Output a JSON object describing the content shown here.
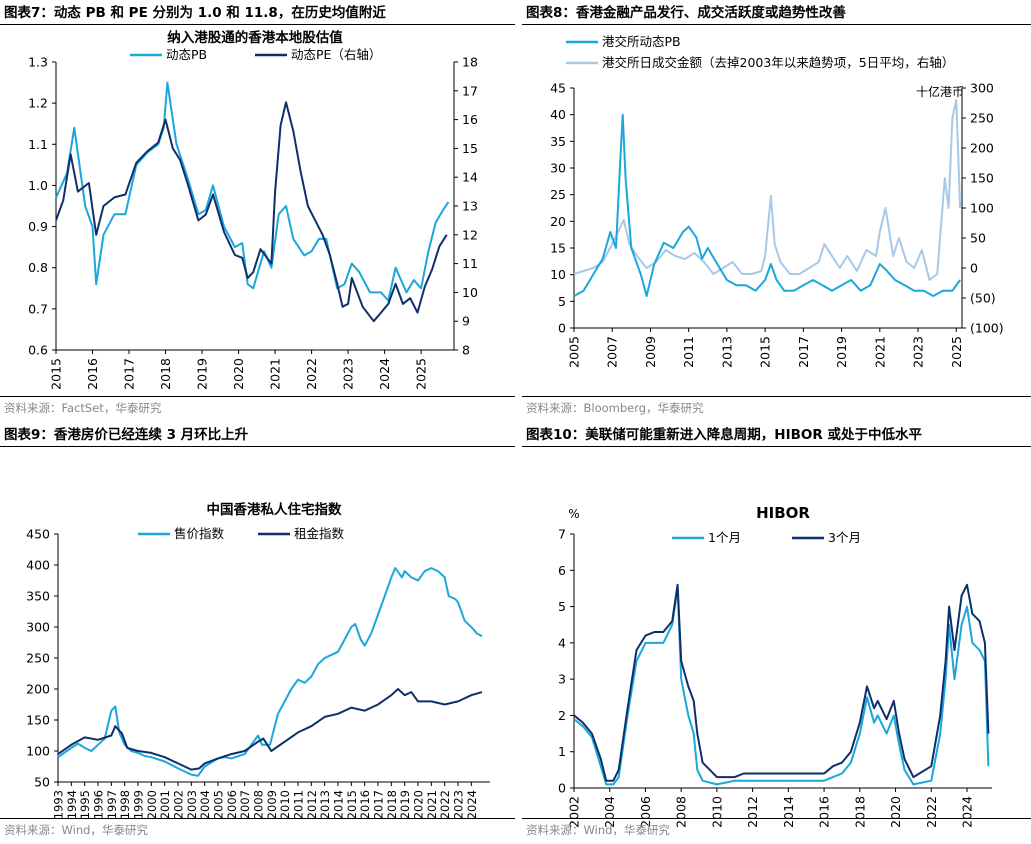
{
  "panels": [
    {
      "header": "图表7：动态 PB 和 PE 分别为 1.0 和 11.8，在历史均值附近",
      "source": "资料来源：FactSet，华泰研究"
    },
    {
      "header": "图表8：香港金融产品发行、成交活跃度或趋势性改善",
      "source": "资料来源：Bloomberg，华泰研究"
    },
    {
      "header": "图表9：香港房价已经连续 3 月环比上升",
      "source": "资料来源：Wind，华泰研究"
    },
    {
      "header": "图表10：美联储可能重新进入降息周期，HIBOR 或处于中低水平",
      "source": "资料来源：Wind，华泰研究"
    }
  ],
  "colors": {
    "light": "#1aa7dc",
    "dark": "#0e2f6b",
    "pale": "#a8c8e8"
  },
  "chart_data": [
    {
      "type": "line",
      "title": "纳入港股通的香港本地股估值",
      "x_ticks": [
        "2015",
        "2016",
        "2017",
        "2018",
        "2019",
        "2020",
        "2021",
        "2022",
        "2023",
        "2024",
        "2025"
      ],
      "xlim": [
        2015,
        2025.9
      ],
      "ylim": [
        0.6,
        1.3
      ],
      "y_ticks": [
        "0.6",
        "0.7",
        "0.8",
        "0.9",
        "1.0",
        "1.1",
        "1.2",
        "1.3"
      ],
      "y2lim": [
        8,
        18
      ],
      "y2_ticks": [
        "8",
        "9",
        "10",
        "11",
        "12",
        "13",
        "14",
        "15",
        "16",
        "17",
        "18"
      ],
      "series": [
        {
          "name": "动态PB",
          "axis": "left",
          "x": [
            2015,
            2015.3,
            2015.5,
            2015.8,
            2016,
            2016.1,
            2016.3,
            2016.6,
            2016.9,
            2017.2,
            2017.5,
            2017.8,
            2017.95,
            2018.05,
            2018.3,
            2018.6,
            2018.9,
            2019.1,
            2019.3,
            2019.6,
            2019.9,
            2020.1,
            2020.25,
            2020.4,
            2020.7,
            2020.9,
            2021.1,
            2021.3,
            2021.5,
            2021.8,
            2022.0,
            2022.2,
            2022.4,
            2022.7,
            2022.9,
            2023.1,
            2023.3,
            2023.6,
            2023.9,
            2024.1,
            2024.3,
            2024.6,
            2024.8,
            2025.0,
            2025.2,
            2025.4,
            2025.6,
            2025.75
          ],
          "y": [
            0.97,
            1.03,
            1.14,
            0.95,
            0.9,
            0.76,
            0.88,
            0.93,
            0.93,
            1.05,
            1.08,
            1.1,
            1.14,
            1.25,
            1.1,
            1.02,
            0.93,
            0.94,
            1.0,
            0.9,
            0.85,
            0.86,
            0.76,
            0.75,
            0.84,
            0.8,
            0.93,
            0.95,
            0.87,
            0.83,
            0.84,
            0.87,
            0.87,
            0.75,
            0.76,
            0.81,
            0.79,
            0.74,
            0.74,
            0.72,
            0.8,
            0.74,
            0.77,
            0.75,
            0.84,
            0.91,
            0.94,
            0.96
          ]
        },
        {
          "name": "动态PE（右轴）",
          "axis": "right",
          "x": [
            2015,
            2015.2,
            2015.4,
            2015.6,
            2015.9,
            2016.1,
            2016.3,
            2016.6,
            2016.9,
            2017.2,
            2017.5,
            2017.8,
            2018.0,
            2018.2,
            2018.4,
            2018.6,
            2018.9,
            2019.1,
            2019.3,
            2019.6,
            2019.9,
            2020.1,
            2020.25,
            2020.4,
            2020.6,
            2020.9,
            2021.0,
            2021.15,
            2021.3,
            2021.5,
            2021.7,
            2021.9,
            2022.1,
            2022.3,
            2022.5,
            2022.7,
            2022.85,
            2023.0,
            2023.1,
            2023.4,
            2023.7,
            2023.9,
            2024.1,
            2024.3,
            2024.5,
            2024.7,
            2024.9,
            2025.1,
            2025.3,
            2025.5,
            2025.7
          ],
          "y": [
            12.5,
            13.2,
            14.8,
            13.5,
            13.8,
            12.0,
            13.0,
            13.3,
            13.4,
            14.5,
            14.9,
            15.2,
            16.0,
            15.0,
            14.6,
            13.8,
            12.5,
            12.7,
            13.4,
            12.1,
            11.3,
            11.2,
            10.5,
            10.7,
            11.5,
            11.0,
            13.5,
            15.8,
            16.6,
            15.6,
            14.2,
            13.0,
            12.5,
            12.0,
            11.3,
            10.3,
            9.5,
            9.6,
            10.5,
            9.5,
            9.0,
            9.3,
            9.6,
            10.3,
            9.6,
            9.8,
            9.3,
            10.2,
            10.8,
            11.6,
            12.0
          ]
        }
      ]
    },
    {
      "type": "line",
      "title": "",
      "unit_label": "十亿港币",
      "x_ticks": [
        "2005",
        "2007",
        "2009",
        "2011",
        "2013",
        "2015",
        "2017",
        "2019",
        "2021",
        "2023",
        "2025"
      ],
      "xlim": [
        2005,
        2025.3
      ],
      "ylim": [
        0,
        45
      ],
      "y_ticks": [
        "0",
        "5",
        "10",
        "15",
        "20",
        "25",
        "30",
        "35",
        "40",
        "45"
      ],
      "y2lim": [
        -100,
        300
      ],
      "y2_ticks": [
        "(100)",
        "(50)",
        "0",
        "50",
        "100",
        "150",
        "200",
        "250",
        "300"
      ],
      "series": [
        {
          "name": "港交所动态PB",
          "axis": "left",
          "x": [
            2005,
            2005.5,
            2006,
            2006.5,
            2006.9,
            2007.2,
            2007.4,
            2007.55,
            2007.7,
            2008.0,
            2008.5,
            2008.8,
            2009.2,
            2009.7,
            2010.2,
            2010.7,
            2011.0,
            2011.4,
            2011.7,
            2012.0,
            2012.5,
            2013.0,
            2013.5,
            2014.0,
            2014.5,
            2015.0,
            2015.3,
            2015.6,
            2016.0,
            2016.5,
            2017.0,
            2017.5,
            2018.0,
            2018.5,
            2019.0,
            2019.5,
            2020.0,
            2020.5,
            2021.0,
            2021.3,
            2021.8,
            2022.3,
            2022.8,
            2023.3,
            2023.8,
            2024.3,
            2024.8,
            2025.2
          ],
          "y": [
            6,
            7,
            10,
            13,
            18,
            15,
            30,
            40,
            28,
            15,
            10,
            6,
            12,
            16,
            15,
            18,
            19,
            17,
            13,
            15,
            12,
            9,
            8,
            8,
            7,
            9,
            12,
            9,
            7,
            7,
            8,
            9,
            8,
            7,
            8,
            9,
            7,
            8,
            12,
            11,
            9,
            8,
            7,
            7,
            6,
            7,
            7,
            9
          ]
        },
        {
          "name": "港交所日成交金额（去掉2003年以来趋势项，5日平均，右轴）",
          "axis": "right",
          "x": [
            2005,
            2005.5,
            2006,
            2006.5,
            2007,
            2007.3,
            2007.6,
            2007.9,
            2008.3,
            2008.8,
            2009.3,
            2009.8,
            2010.3,
            2010.8,
            2011.3,
            2011.8,
            2012.3,
            2012.8,
            2013.3,
            2013.8,
            2014.3,
            2014.8,
            2015.0,
            2015.3,
            2015.5,
            2015.8,
            2016.3,
            2016.8,
            2017.3,
            2017.8,
            2018.1,
            2018.5,
            2018.9,
            2019.3,
            2019.8,
            2020.3,
            2020.8,
            2021.0,
            2021.3,
            2021.7,
            2022.0,
            2022.4,
            2022.8,
            2023.2,
            2023.6,
            2024.0,
            2024.4,
            2024.6,
            2024.8,
            2025.0,
            2025.2
          ],
          "y": [
            -10,
            -5,
            0,
            10,
            40,
            60,
            80,
            40,
            20,
            0,
            10,
            30,
            20,
            15,
            25,
            10,
            -10,
            0,
            10,
            -10,
            -10,
            -5,
            20,
            120,
            40,
            10,
            -10,
            -10,
            0,
            10,
            40,
            20,
            0,
            20,
            -5,
            30,
            20,
            60,
            100,
            20,
            50,
            10,
            0,
            30,
            -20,
            -10,
            150,
            100,
            250,
            280,
            100
          ]
        }
      ]
    },
    {
      "type": "line",
      "title": "中国香港私人住宅指数",
      "x_ticks": [
        "1993",
        "1994",
        "1995",
        "1996",
        "1997",
        "1998",
        "1999",
        "2000",
        "2001",
        "2002",
        "2003",
        "2004",
        "2005",
        "2006",
        "2007",
        "2008",
        "2009",
        "2010",
        "2011",
        "2012",
        "2013",
        "2014",
        "2015",
        "2016",
        "2017",
        "2018",
        "2019",
        "2020",
        "2021",
        "2022",
        "2023",
        "2024"
      ],
      "xlim": [
        1993,
        2025.4
      ],
      "ylim": [
        50,
        450
      ],
      "y_ticks": [
        "50",
        "100",
        "150",
        "200",
        "250",
        "300",
        "350",
        "400",
        "450"
      ],
      "series": [
        {
          "name": "售价指数",
          "x": [
            1993,
            1994,
            1994.5,
            1995,
            1995.5,
            1996,
            1996.5,
            1997,
            1997.3,
            1997.6,
            1998,
            1998.5,
            1999,
            1999.5,
            2000,
            2001,
            2002,
            2003,
            2003.5,
            2004,
            2005,
            2005.5,
            2006,
            2007,
            2007.5,
            2008,
            2008.3,
            2008.9,
            2009.5,
            2010,
            2010.5,
            2011,
            2011.5,
            2012,
            2012.5,
            2013,
            2014,
            2014.5,
            2015,
            2015.3,
            2015.7,
            2016,
            2016.5,
            2017,
            2017.5,
            2018,
            2018.3,
            2018.8,
            2019,
            2019.5,
            2020,
            2020.5,
            2021,
            2021.5,
            2022,
            2022.3,
            2022.8,
            2023,
            2023.5,
            2024,
            2024.4,
            2024.8
          ],
          "y": [
            90,
            105,
            112,
            105,
            100,
            110,
            120,
            165,
            172,
            130,
            110,
            100,
            97,
            92,
            90,
            83,
            72,
            62,
            60,
            75,
            88,
            90,
            88,
            95,
            110,
            125,
            110,
            110,
            160,
            180,
            200,
            215,
            210,
            220,
            240,
            250,
            260,
            280,
            300,
            305,
            280,
            270,
            290,
            320,
            350,
            380,
            395,
            380,
            390,
            380,
            375,
            390,
            395,
            390,
            380,
            350,
            345,
            340,
            310,
            300,
            290,
            285
          ]
        },
        {
          "name": "租金指数",
          "x": [
            1993,
            1994,
            1995,
            1996,
            1997,
            1997.3,
            1997.8,
            1998.2,
            1999,
            2000,
            2001,
            2002,
            2003,
            2003.6,
            2004,
            2005,
            2006,
            2007,
            2008,
            2008.4,
            2009,
            2010,
            2011,
            2012,
            2013,
            2014,
            2015,
            2016,
            2017,
            2018,
            2018.5,
            2019,
            2019.5,
            2020,
            2021,
            2022,
            2023,
            2024,
            2024.8
          ],
          "y": [
            95,
            110,
            122,
            118,
            125,
            140,
            128,
            105,
            100,
            97,
            90,
            80,
            70,
            72,
            80,
            88,
            95,
            100,
            115,
            120,
            100,
            115,
            130,
            140,
            155,
            160,
            170,
            165,
            175,
            190,
            200,
            190,
            195,
            180,
            180,
            175,
            180,
            190,
            195
          ]
        }
      ]
    },
    {
      "type": "line",
      "title": "HIBOR",
      "unit_label": "%",
      "x_ticks": [
        "2002",
        "2004",
        "2006",
        "2008",
        "2010",
        "2012",
        "2014",
        "2016",
        "2018",
        "2020",
        "2022",
        "2024"
      ],
      "xlim": [
        2002,
        2025.4
      ],
      "ylim": [
        0,
        7
      ],
      "y_ticks": [
        "0",
        "1",
        "2",
        "3",
        "4",
        "5",
        "6",
        "7"
      ],
      "series": [
        {
          "name": "1个月",
          "x": [
            2002,
            2002.5,
            2003,
            2003.5,
            2003.8,
            2004.2,
            2004.5,
            2005,
            2005.5,
            2006,
            2006.5,
            2007,
            2007.5,
            2007.8,
            2008,
            2008.4,
            2008.7,
            2008.9,
            2009.2,
            2010,
            2011,
            2012,
            2013,
            2014,
            2015,
            2016,
            2016.5,
            2017,
            2017.5,
            2018,
            2018.4,
            2018.8,
            2019,
            2019.5,
            2019.9,
            2020.2,
            2020.5,
            2021,
            2022,
            2022.5,
            2022.8,
            2023,
            2023.3,
            2023.7,
            2024,
            2024.3,
            2024.7,
            2025,
            2025.2
          ],
          "y": [
            1.9,
            1.7,
            1.4,
            0.6,
            0.1,
            0.1,
            0.3,
            2.0,
            3.5,
            4.0,
            4.0,
            4.0,
            4.5,
            5.5,
            3.0,
            2.0,
            1.5,
            0.5,
            0.2,
            0.1,
            0.2,
            0.2,
            0.2,
            0.2,
            0.2,
            0.2,
            0.3,
            0.4,
            0.7,
            1.5,
            2.5,
            1.8,
            2.0,
            1.5,
            2.0,
            1.2,
            0.5,
            0.1,
            0.2,
            1.5,
            3.0,
            4.5,
            3.0,
            4.5,
            5.0,
            4.0,
            3.8,
            3.5,
            0.6
          ]
        },
        {
          "name": "3个月",
          "x": [
            2002,
            2002.5,
            2003,
            2003.5,
            2003.8,
            2004.2,
            2004.5,
            2005,
            2005.5,
            2006,
            2006.5,
            2007,
            2007.5,
            2007.8,
            2008,
            2008.4,
            2008.7,
            2008.9,
            2009.2,
            2010,
            2011,
            2011.5,
            2012,
            2013,
            2014,
            2015,
            2016,
            2016.5,
            2017,
            2017.5,
            2018,
            2018.4,
            2018.8,
            2019,
            2019.5,
            2019.9,
            2020.2,
            2020.5,
            2021,
            2022,
            2022.5,
            2022.8,
            2023,
            2023.3,
            2023.7,
            2024,
            2024.3,
            2024.7,
            2025,
            2025.2
          ],
          "y": [
            2.0,
            1.8,
            1.5,
            0.8,
            0.2,
            0.2,
            0.5,
            2.2,
            3.8,
            4.2,
            4.3,
            4.3,
            4.6,
            5.6,
            3.5,
            2.8,
            2.4,
            1.5,
            0.7,
            0.3,
            0.3,
            0.4,
            0.4,
            0.4,
            0.4,
            0.4,
            0.4,
            0.6,
            0.7,
            1.0,
            1.8,
            2.8,
            2.2,
            2.4,
            1.9,
            2.4,
            1.5,
            0.8,
            0.3,
            0.6,
            2.0,
            3.5,
            5.0,
            3.8,
            5.3,
            5.6,
            4.8,
            4.6,
            4.0,
            1.5
          ]
        }
      ]
    }
  ]
}
